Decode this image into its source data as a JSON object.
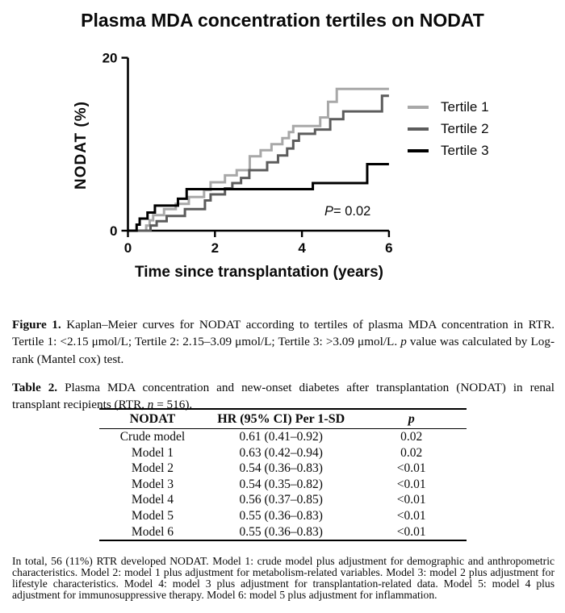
{
  "figure": {
    "title": "Plasma MDA concentration tertiles on NODAT",
    "p_value": {
      "symbol": "P",
      "value": "= 0.02"
    },
    "chart_data": {
      "type": "line",
      "subtype": "kaplan-meier-step",
      "title": "Plasma MDA concentration tertiles on NODAT",
      "xlabel": "Time since transplantation (years)",
      "ylabel": "NODAT (%)",
      "xlim": [
        0,
        6
      ],
      "ylim": [
        0,
        20
      ],
      "xticks": [
        0,
        2,
        4,
        6
      ],
      "yticks": [
        0,
        20
      ],
      "grid": false,
      "legend_position": "right",
      "annotation": "P= 0.02",
      "series": [
        {
          "name": "Tertile 1",
          "color": "#a8a8a8",
          "events": [
            [
              0.42,
              0.6
            ],
            [
              0.5,
              1.2
            ],
            [
              0.58,
              1.8
            ],
            [
              0.83,
              2.5
            ],
            [
              1.1,
              3.1
            ],
            [
              1.4,
              3.9
            ],
            [
              1.75,
              4.7
            ],
            [
              1.9,
              5.6
            ],
            [
              2.23,
              6.4
            ],
            [
              2.5,
              7.0
            ],
            [
              2.8,
              8.6
            ],
            [
              3.05,
              9.3
            ],
            [
              3.3,
              10.0
            ],
            [
              3.55,
              10.7
            ],
            [
              3.7,
              11.4
            ],
            [
              3.8,
              12.1
            ],
            [
              4.42,
              13.1
            ],
            [
              4.6,
              14.9
            ],
            [
              4.8,
              16.4
            ]
          ]
        },
        {
          "name": "Tertile 2",
          "color": "#5c5c5c",
          "events": [
            [
              0.52,
              0.6
            ],
            [
              0.66,
              1.1
            ],
            [
              0.89,
              1.7
            ],
            [
              1.31,
              2.5
            ],
            [
              1.77,
              3.5
            ],
            [
              1.9,
              4.2
            ],
            [
              2.23,
              4.9
            ],
            [
              2.4,
              5.5
            ],
            [
              2.6,
              6.1
            ],
            [
              2.79,
              7.0
            ],
            [
              3.2,
              7.9
            ],
            [
              3.45,
              8.7
            ],
            [
              3.66,
              9.5
            ],
            [
              3.8,
              10.4
            ],
            [
              3.93,
              11.2
            ],
            [
              4.3,
              11.7
            ],
            [
              4.65,
              12.9
            ],
            [
              4.95,
              13.8
            ],
            [
              5.84,
              15.6
            ]
          ]
        },
        {
          "name": "Tertile 3",
          "color": "#000000",
          "events": [
            [
              0.2,
              0.7
            ],
            [
              0.27,
              1.4
            ],
            [
              0.45,
              2.1
            ],
            [
              0.62,
              2.9
            ],
            [
              1.15,
              3.7
            ],
            [
              1.35,
              4.8
            ],
            [
              4.25,
              5.5
            ],
            [
              5.5,
              7.7
            ]
          ]
        }
      ]
    }
  },
  "figure_caption": {
    "segments": [
      {
        "text": "Figure 1.",
        "style": "bold"
      },
      {
        "text": " Kaplan–Meier curves for NODAT according to tertiles of plasma MDA concentration in RTR. Tertile 1: <2.15 μmol/L; Tertile 2: 2.15–3.09 μmol/L; Tertile 3: >3.09 μmol/L. ",
        "style": ""
      },
      {
        "text": "p",
        "style": "italic"
      },
      {
        "text": " value was calculated by Log-rank (Mantel cox) test.",
        "style": ""
      }
    ]
  },
  "table_caption": {
    "segments": [
      {
        "text": "Table 2.",
        "style": "bold"
      },
      {
        "text": " Plasma MDA concentration and new-onset diabetes after transplantation (NODAT) in renal transplant recipients (RTR, ",
        "style": ""
      },
      {
        "text": "n",
        "style": "italic"
      },
      {
        "text": " = 516).",
        "style": ""
      }
    ]
  },
  "table": {
    "headers": [
      {
        "text": "NODAT",
        "style": "bold"
      },
      {
        "text": "HR (95% CI) Per 1-SD",
        "style": "bold"
      },
      {
        "text": "p",
        "style": "bold-italic"
      }
    ],
    "rows": [
      [
        "Crude model",
        "0.61 (0.41–0.92)",
        "0.02"
      ],
      [
        "Model 1",
        "0.63 (0.42–0.94)",
        "0.02"
      ],
      [
        "Model 2",
        "0.54 (0.36–0.83)",
        "<0.01"
      ],
      [
        "Model 3",
        "0.54 (0.35–0.82)",
        "<0.01"
      ],
      [
        "Model 4",
        "0.56 (0.37–0.85)",
        "<0.01"
      ],
      [
        "Model 5",
        "0.55 (0.36–0.83)",
        "<0.01"
      ],
      [
        "Model 6",
        "0.55 (0.36–0.83)",
        "<0.01"
      ]
    ]
  },
  "footnote": {
    "text": "In total, 56 (11%) RTR developed NODAT. Model 1: crude model plus adjustment for demographic and anthropometric characteristics. Model 2: model 1 plus adjustment for metabolism-related variables. Model 3: model 2 plus adjustment for lifestyle characteristics. Model 4: model 3 plus adjustment for transplantation-related data. Model 5: model 4 plus adjustment for immunosuppressive therapy. Model 6: model 5 plus adjustment for inflammation."
  }
}
